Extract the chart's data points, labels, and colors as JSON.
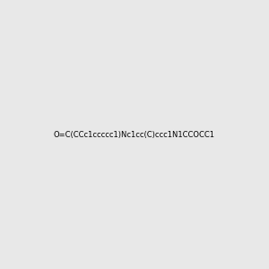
{
  "smiles": "O=C(CCc1ccccc1)Nc1cc(C)ccc1N1CCOCC1",
  "title": "",
  "background_color": "#e8e8e8",
  "figure_size": [
    3.0,
    3.0
  ],
  "dpi": 100
}
